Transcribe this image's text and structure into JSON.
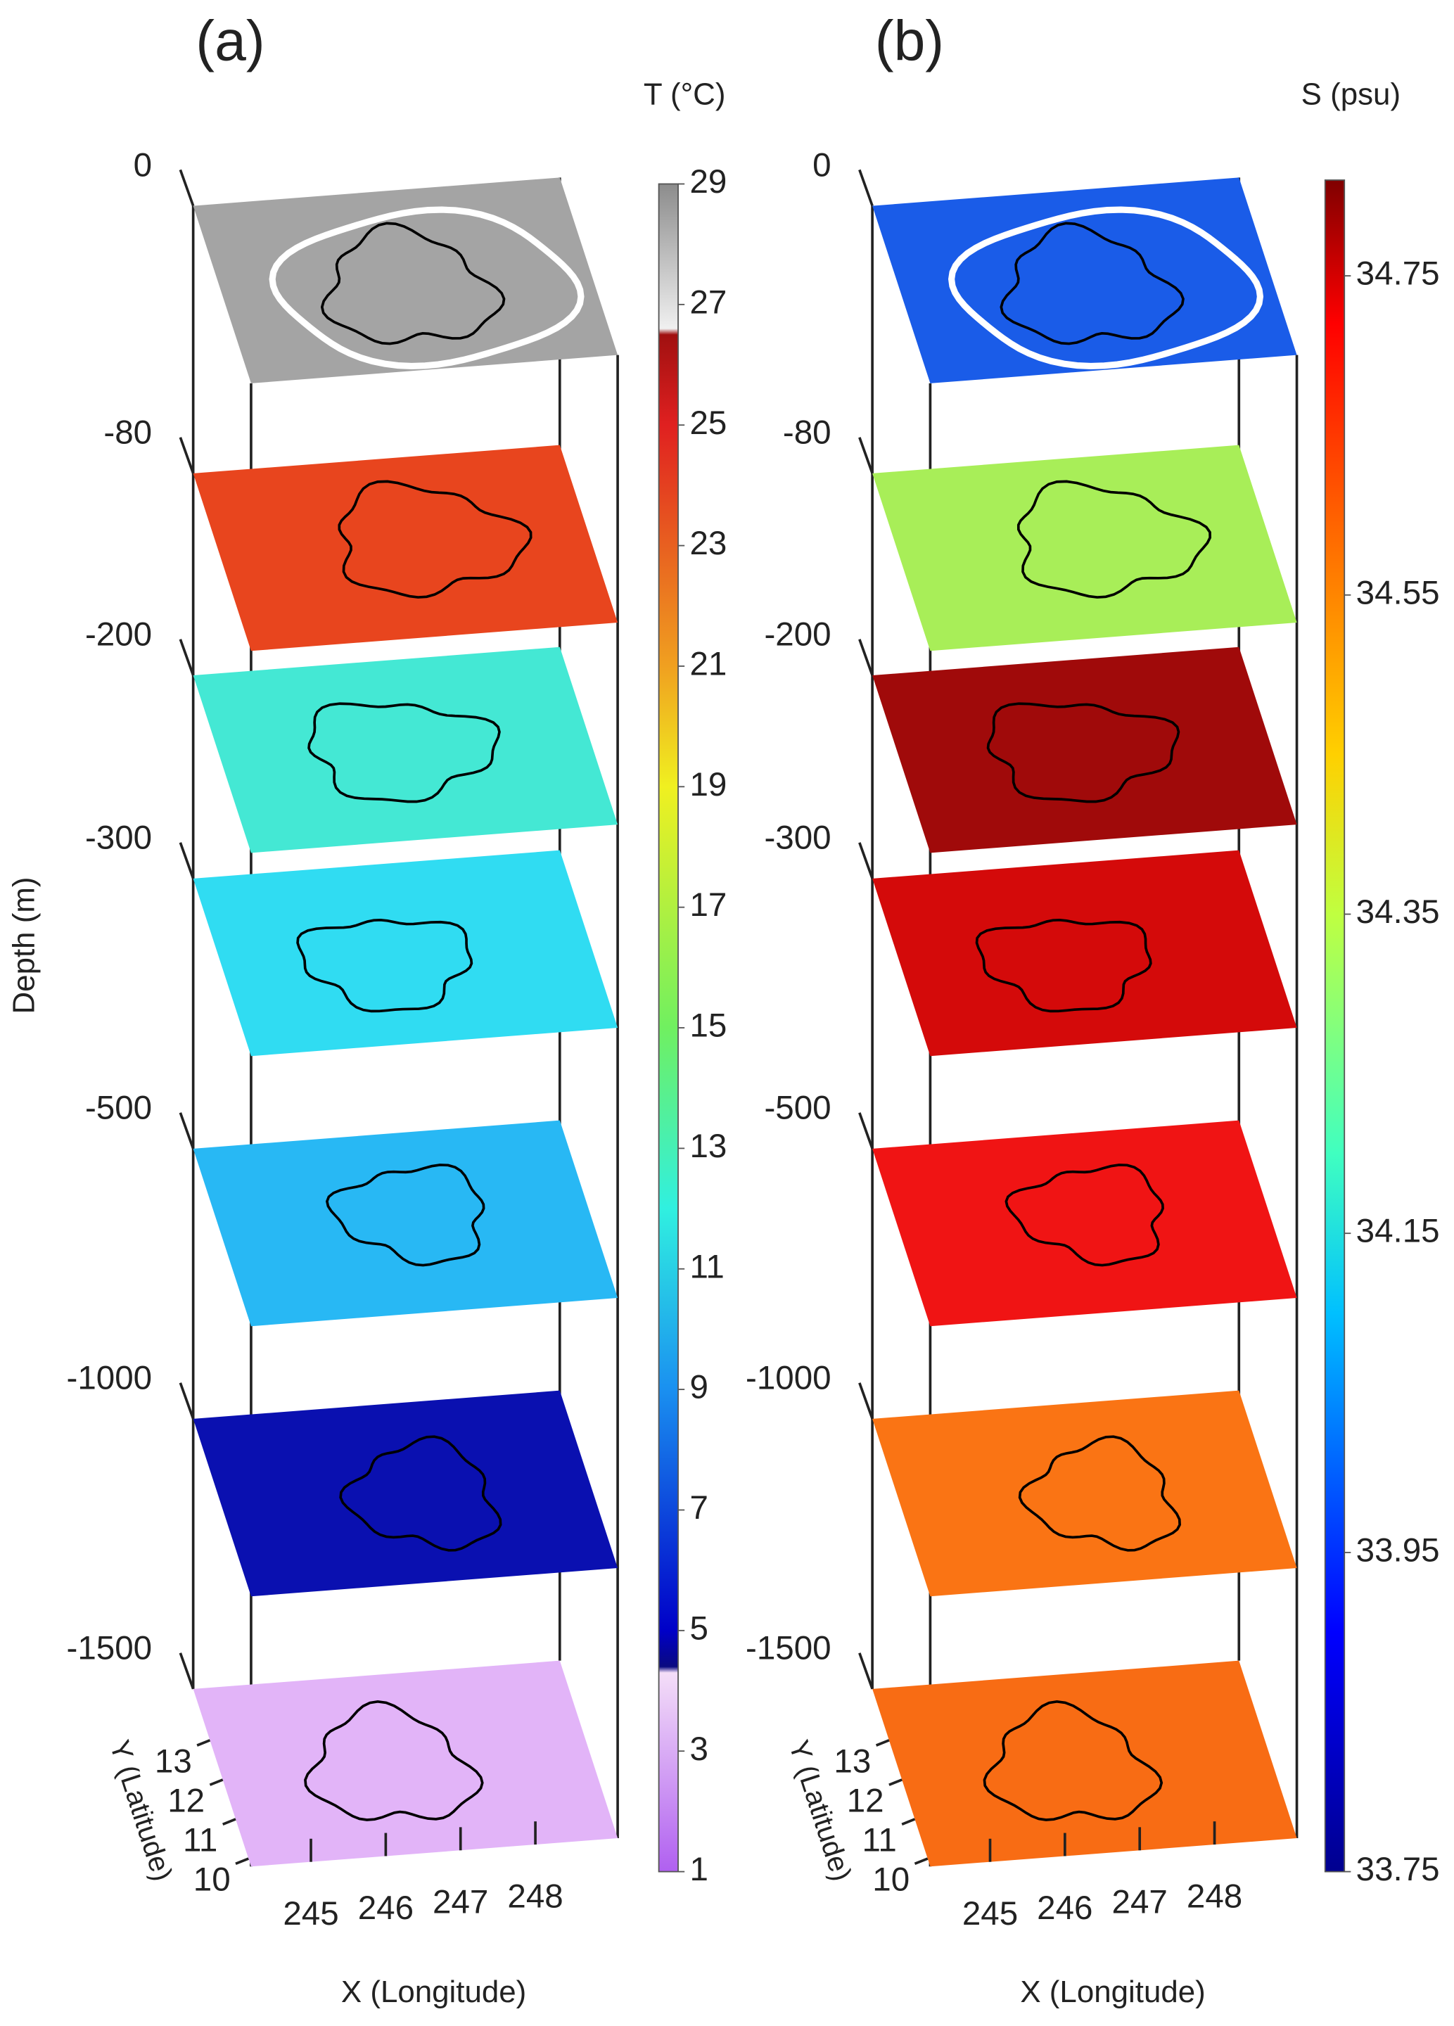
{
  "chart_data": [
    {
      "type": "slice-stack",
      "panel_label": "(a)",
      "colorbar_label": "T (°C)",
      "colorbar_lim": [
        1,
        29
      ],
      "colorbar_ticks": [
        1,
        3,
        5,
        7,
        9,
        11,
        13,
        15,
        17,
        19,
        21,
        23,
        25,
        27,
        29
      ],
      "colormap": [
        {
          "value": 1,
          "color": "#b060f0"
        },
        {
          "value": 4.3,
          "color": "#f4def8"
        },
        {
          "value": 4.4,
          "color": "#0a0a80"
        },
        {
          "value": 5,
          "color": "#0000c8"
        },
        {
          "value": 9,
          "color": "#1a90f0"
        },
        {
          "value": 12,
          "color": "#30f0e0"
        },
        {
          "value": 15,
          "color": "#70f060"
        },
        {
          "value": 19,
          "color": "#f0f020"
        },
        {
          "value": 21,
          "color": "#f0a020"
        },
        {
          "value": 25,
          "color": "#e02020"
        },
        {
          "value": 26.5,
          "color": "#a01010"
        },
        {
          "value": 26.6,
          "color": "#f0f0f0"
        },
        {
          "value": 29,
          "color": "#8c8c8c"
        }
      ],
      "depths": [
        0,
        -80,
        -200,
        -300,
        -500,
        -1000,
        -1500
      ],
      "slice_colors": [
        "#a4a4a4",
        "#e8451e",
        "#44e8d4",
        "#30dcf2",
        "#28b8f4",
        "#0a10b0",
        "#e2b4f8"
      ],
      "ylabel": "Depth (m)",
      "xlabel": "X (Longitude)",
      "zlabel": "Y (Latitude)",
      "xlim": [
        244.2,
        249.1
      ],
      "xticks": [
        245,
        246,
        247,
        248
      ],
      "ylim": [
        9.8,
        14.3
      ],
      "yticks": [
        10,
        11,
        12,
        13
      ]
    },
    {
      "type": "slice-stack",
      "panel_label": "(b)",
      "colorbar_label": "S (psu)",
      "colorbar_lim": [
        33.75,
        34.81
      ],
      "colorbar_ticks": [
        33.75,
        33.95,
        34.15,
        34.35,
        34.55,
        34.75
      ],
      "colormap": [
        {
          "value": 33.75,
          "color": "#00008f"
        },
        {
          "value": 33.9,
          "color": "#0000ff"
        },
        {
          "value": 34.1,
          "color": "#00c0ff"
        },
        {
          "value": 34.2,
          "color": "#40ffc0"
        },
        {
          "value": 34.35,
          "color": "#c0ff40"
        },
        {
          "value": 34.45,
          "color": "#ffd000"
        },
        {
          "value": 34.6,
          "color": "#ff6000"
        },
        {
          "value": 34.72,
          "color": "#ff0000"
        },
        {
          "value": 34.81,
          "color": "#800000"
        }
      ],
      "depths": [
        0,
        -80,
        -200,
        -300,
        -500,
        -1000,
        -1500
      ],
      "slice_colors": [
        "#1a5ce8",
        "#a8ee58",
        "#a00a0a",
        "#d40a0a",
        "#f01414",
        "#fa7414",
        "#f86c14"
      ],
      "xlabel": "X (Longitude)",
      "zlabel": "Y (Latitude)",
      "xlim": [
        244.2,
        249.1
      ],
      "xticks": [
        245,
        246,
        247,
        248
      ],
      "ylim": [
        9.8,
        14.3
      ],
      "yticks": [
        10,
        11,
        12,
        13
      ]
    }
  ]
}
